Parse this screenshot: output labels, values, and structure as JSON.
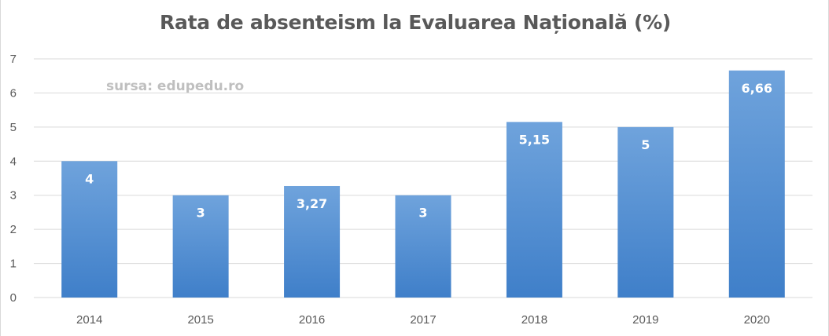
{
  "chart_data": {
    "type": "bar",
    "title": "Rata de absenteism la Evaluarea Națională (%)",
    "annotation": "sursa: edupedu.ro",
    "categories": [
      "2014",
      "2015",
      "2016",
      "2017",
      "2018",
      "2019",
      "2020"
    ],
    "values": [
      4,
      3,
      3.27,
      3,
      5.15,
      5,
      6.66
    ],
    "data_labels": [
      "4",
      "3",
      "3,27",
      "3",
      "5,15",
      "5",
      "6,66"
    ],
    "xlabel": "",
    "ylabel": "",
    "ylim": [
      0,
      7
    ],
    "yticks": [
      "0",
      "1",
      "2",
      "3",
      "4",
      "5",
      "6",
      "7"
    ],
    "grid": true,
    "legend": "none",
    "colors": {
      "bar_top": "#6fa3dc",
      "bar_bottom": "#3f7fc9",
      "grid": "#d9d9d9",
      "axis_text": "#595959",
      "title": "#595959",
      "annotation": "#bfbfbf"
    }
  }
}
